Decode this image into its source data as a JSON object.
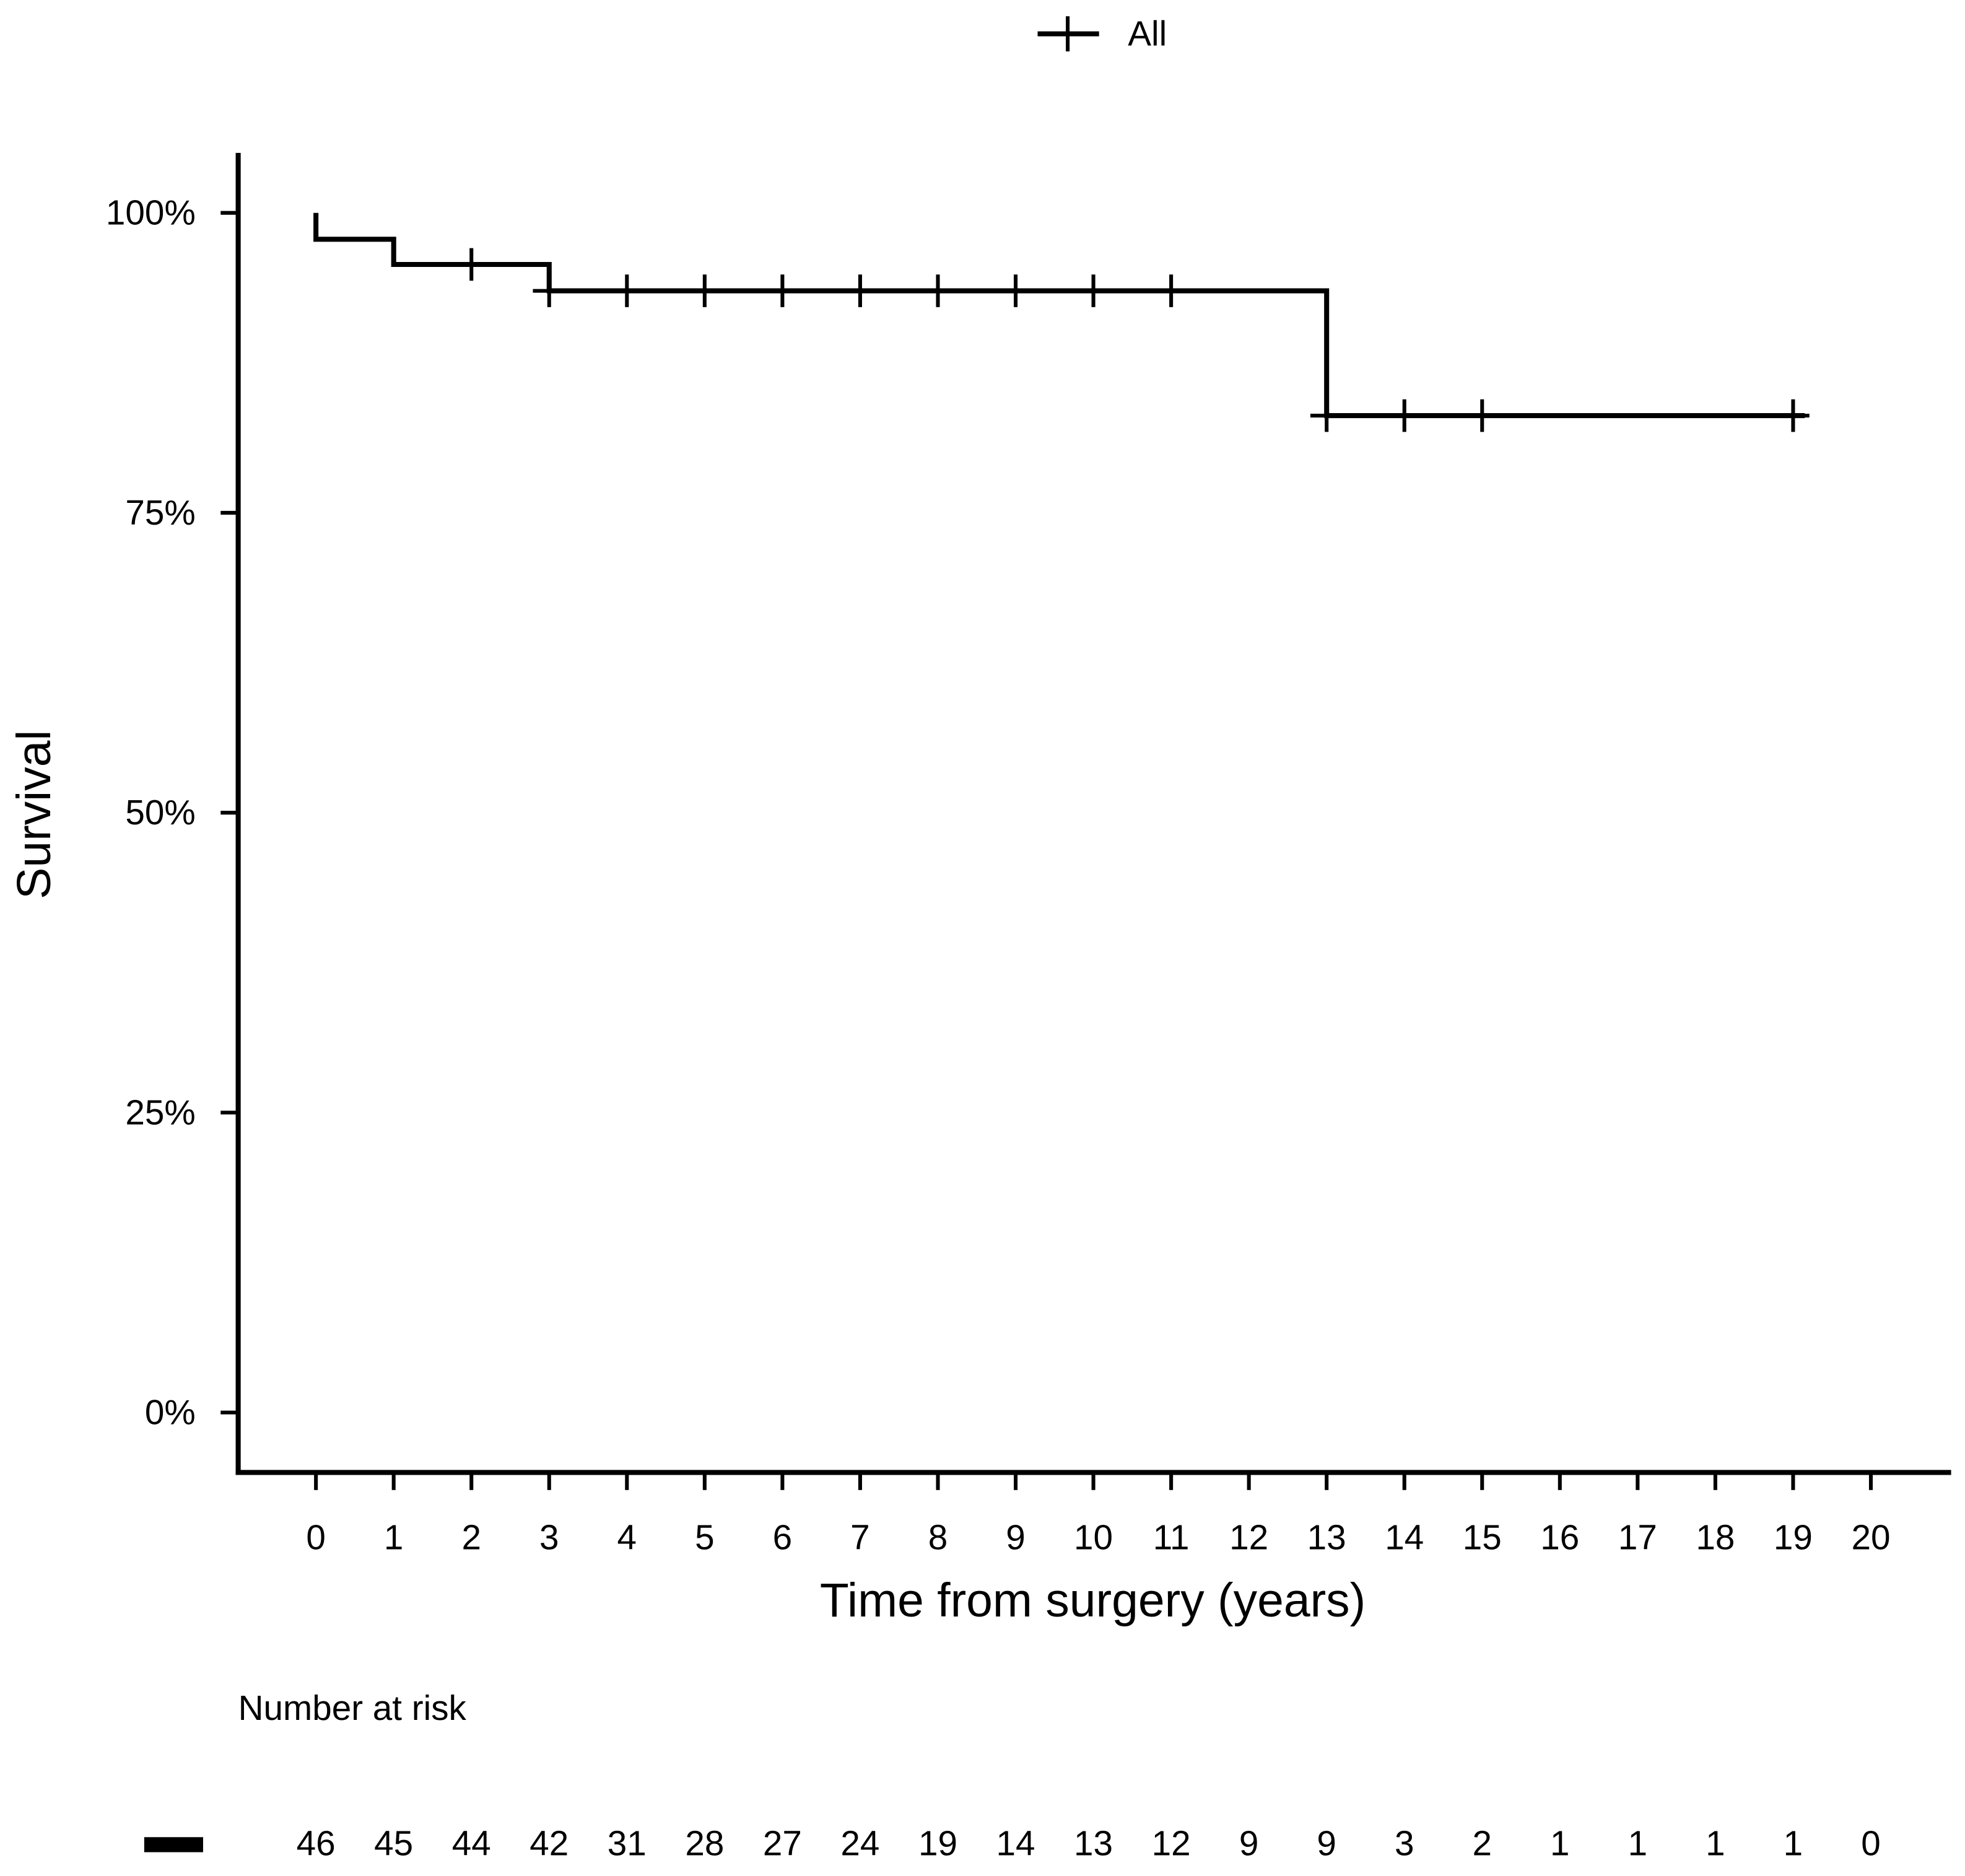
{
  "chart_data": {
    "type": "step",
    "legend_title": null,
    "xlabel": "Time from surgery (years)",
    "ylabel": "Survival",
    "xlim": [
      -1,
      21
    ],
    "ylim": [
      -5,
      105
    ],
    "xticks": [
      0,
      1,
      2,
      3,
      4,
      5,
      6,
      7,
      8,
      9,
      10,
      11,
      12,
      13,
      14,
      15,
      16,
      17,
      18,
      19,
      20
    ],
    "yticks": [
      {
        "value": 0,
        "label": "0%"
      },
      {
        "value": 25,
        "label": "25%"
      },
      {
        "value": 50,
        "label": "50%"
      },
      {
        "value": 75,
        "label": "75%"
      },
      {
        "value": 100,
        "label": "100%"
      }
    ],
    "grid": false,
    "series": [
      {
        "name": "All",
        "color": "#000000",
        "x": [
          0,
          0,
          1,
          1,
          3,
          3,
          13,
          13,
          19.15
        ],
        "values": [
          100,
          97.8,
          97.8,
          95.7,
          95.7,
          93.5,
          93.5,
          83.1,
          83.1
        ]
      }
    ],
    "censor": {
      "x": [
        2,
        3,
        4,
        5,
        6,
        7,
        8,
        9,
        10,
        11,
        13,
        14,
        15,
        19
      ],
      "values": [
        95.7,
        93.5,
        93.5,
        93.5,
        93.5,
        93.5,
        93.5,
        93.5,
        93.5,
        93.5,
        83.1,
        83.1,
        83.1,
        83.1
      ]
    },
    "risk_table": {
      "title": "Number at risk",
      "values": [
        46,
        45,
        44,
        42,
        31,
        28,
        27,
        24,
        19,
        14,
        13,
        12,
        9,
        9,
        3,
        2,
        1,
        1,
        1,
        1,
        0
      ]
    }
  }
}
